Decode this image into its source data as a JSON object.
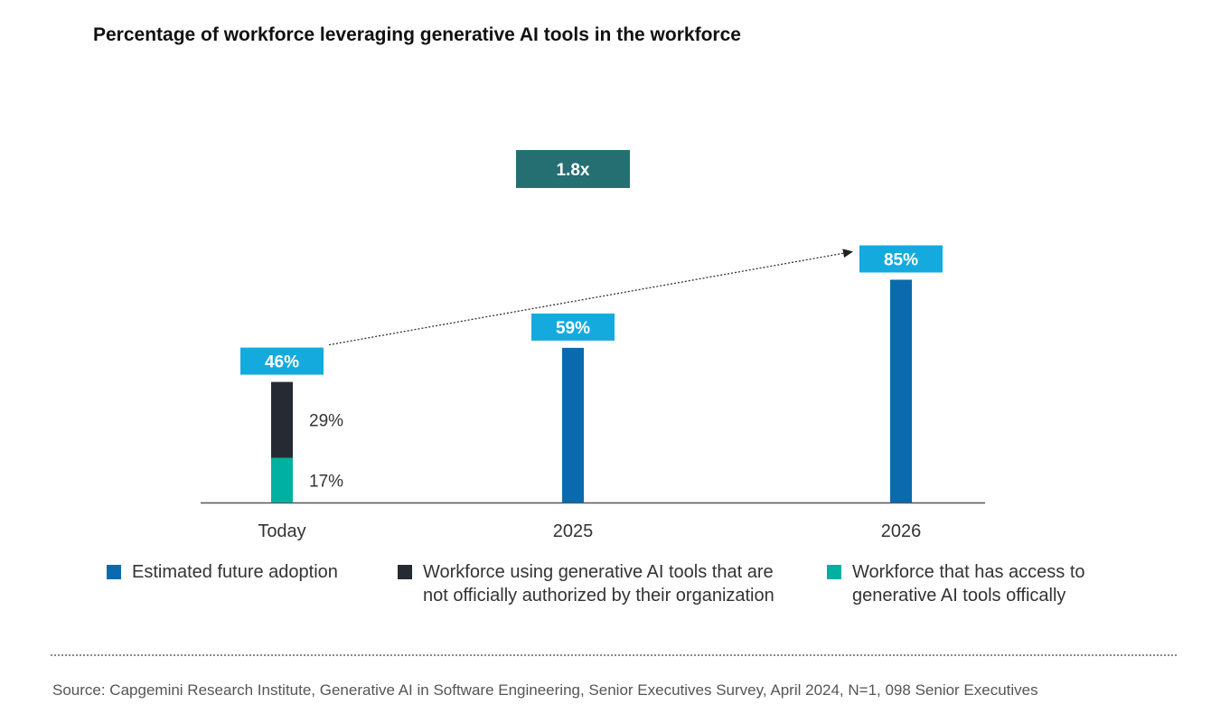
{
  "title": "Percentage of workforce leveraging generative AI tools in the workforce",
  "colors": {
    "estimated": "#0a6aad",
    "unauthorized": "#262b33",
    "official": "#00b0a0",
    "callout": "#14aade",
    "growth_box": "#256f73",
    "axis": "#555555"
  },
  "chart_data": {
    "type": "bar",
    "categories": [
      "Today",
      "2025",
      "2026"
    ],
    "series": [
      {
        "name": "Workforce that has access to generative AI tools offically",
        "values": [
          17,
          null,
          null
        ]
      },
      {
        "name": "Workforce using generative AI tools that are not officially authorized by their organization",
        "values": [
          29,
          null,
          null
        ]
      },
      {
        "name": "Estimated future adoption",
        "values": [
          null,
          59,
          85
        ]
      }
    ],
    "stacked": true,
    "totals": [
      46,
      59,
      85
    ],
    "total_labels": [
      "46%",
      "59%",
      "85%"
    ],
    "segment_labels": [
      "17%",
      "29%"
    ],
    "growth_annotation": "1.8x",
    "ylim": [
      0,
      100
    ],
    "legend_position": "bottom"
  },
  "legend": [
    {
      "color_key": "estimated",
      "label_line1": "Estimated future adoption",
      "label_line2": ""
    },
    {
      "color_key": "unauthorized",
      "label_line1": "Workforce using generative AI tools that are",
      "label_line2": "not officially authorized by their organization"
    },
    {
      "color_key": "official",
      "label_line1": "Workforce that has access to",
      "label_line2": "generative AI tools offically"
    }
  ],
  "source": "Source: Capgemini Research Institute, Generative AI in Software Engineering, Senior Executives Survey, April 2024, N=1, 098 Senior Executives"
}
